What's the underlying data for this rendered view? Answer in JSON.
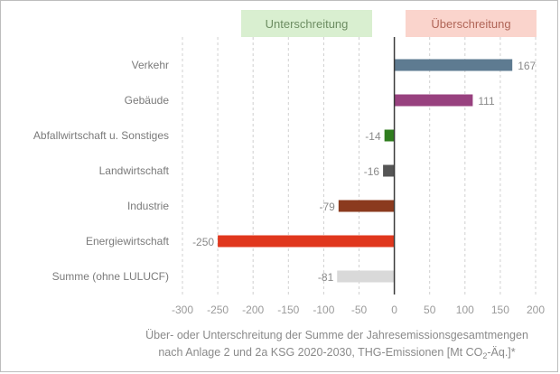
{
  "chart_data": {
    "type": "bar",
    "orientation": "horizontal",
    "categories": [
      "Verkehr",
      "Gebäude",
      "Abfallwirtschaft u. Sonstiges",
      "Landwirtschaft",
      "Industrie",
      "Energiewirtschaft",
      "Summe (ohne LULUCF)"
    ],
    "values": [
      167,
      111,
      -14,
      -16,
      -79,
      -250,
      -81
    ],
    "value_labels": [
      "167",
      "111",
      "-14",
      "-16",
      "-79",
      "-250",
      "-81"
    ],
    "bar_colors": [
      "#5e7b91",
      "#98417f",
      "#2f7d1e",
      "#555555",
      "#8b3a1e",
      "#e0371d",
      "#d9d9d9"
    ],
    "xlim": [
      -300,
      200
    ],
    "xticks": [
      -300,
      -250,
      -200,
      -150,
      -100,
      -50,
      0,
      50,
      100,
      150,
      200
    ],
    "xtick_labels": [
      "-300",
      "-250",
      "-200",
      "-150",
      "-100",
      "-50",
      "0",
      "50",
      "100",
      "150",
      "200"
    ],
    "grid": "vertical dashed",
    "legend_boxes": [
      {
        "label": "Unterschreitung",
        "color": "#d9efd0",
        "text_color": "#6d8d62"
      },
      {
        "label": "Überschreitung",
        "color": "#fad4cc",
        "text_color": "#b06557"
      }
    ],
    "xlabel_lines": [
      "Über- oder Unterschreitung der Summe der Jahresemissionsgesamtmengen",
      "nach Anlage 2 und 2a KSG 2020-2030, THG-Emissionen [Mt CO",
      "2",
      "-Äq.]*"
    ]
  }
}
